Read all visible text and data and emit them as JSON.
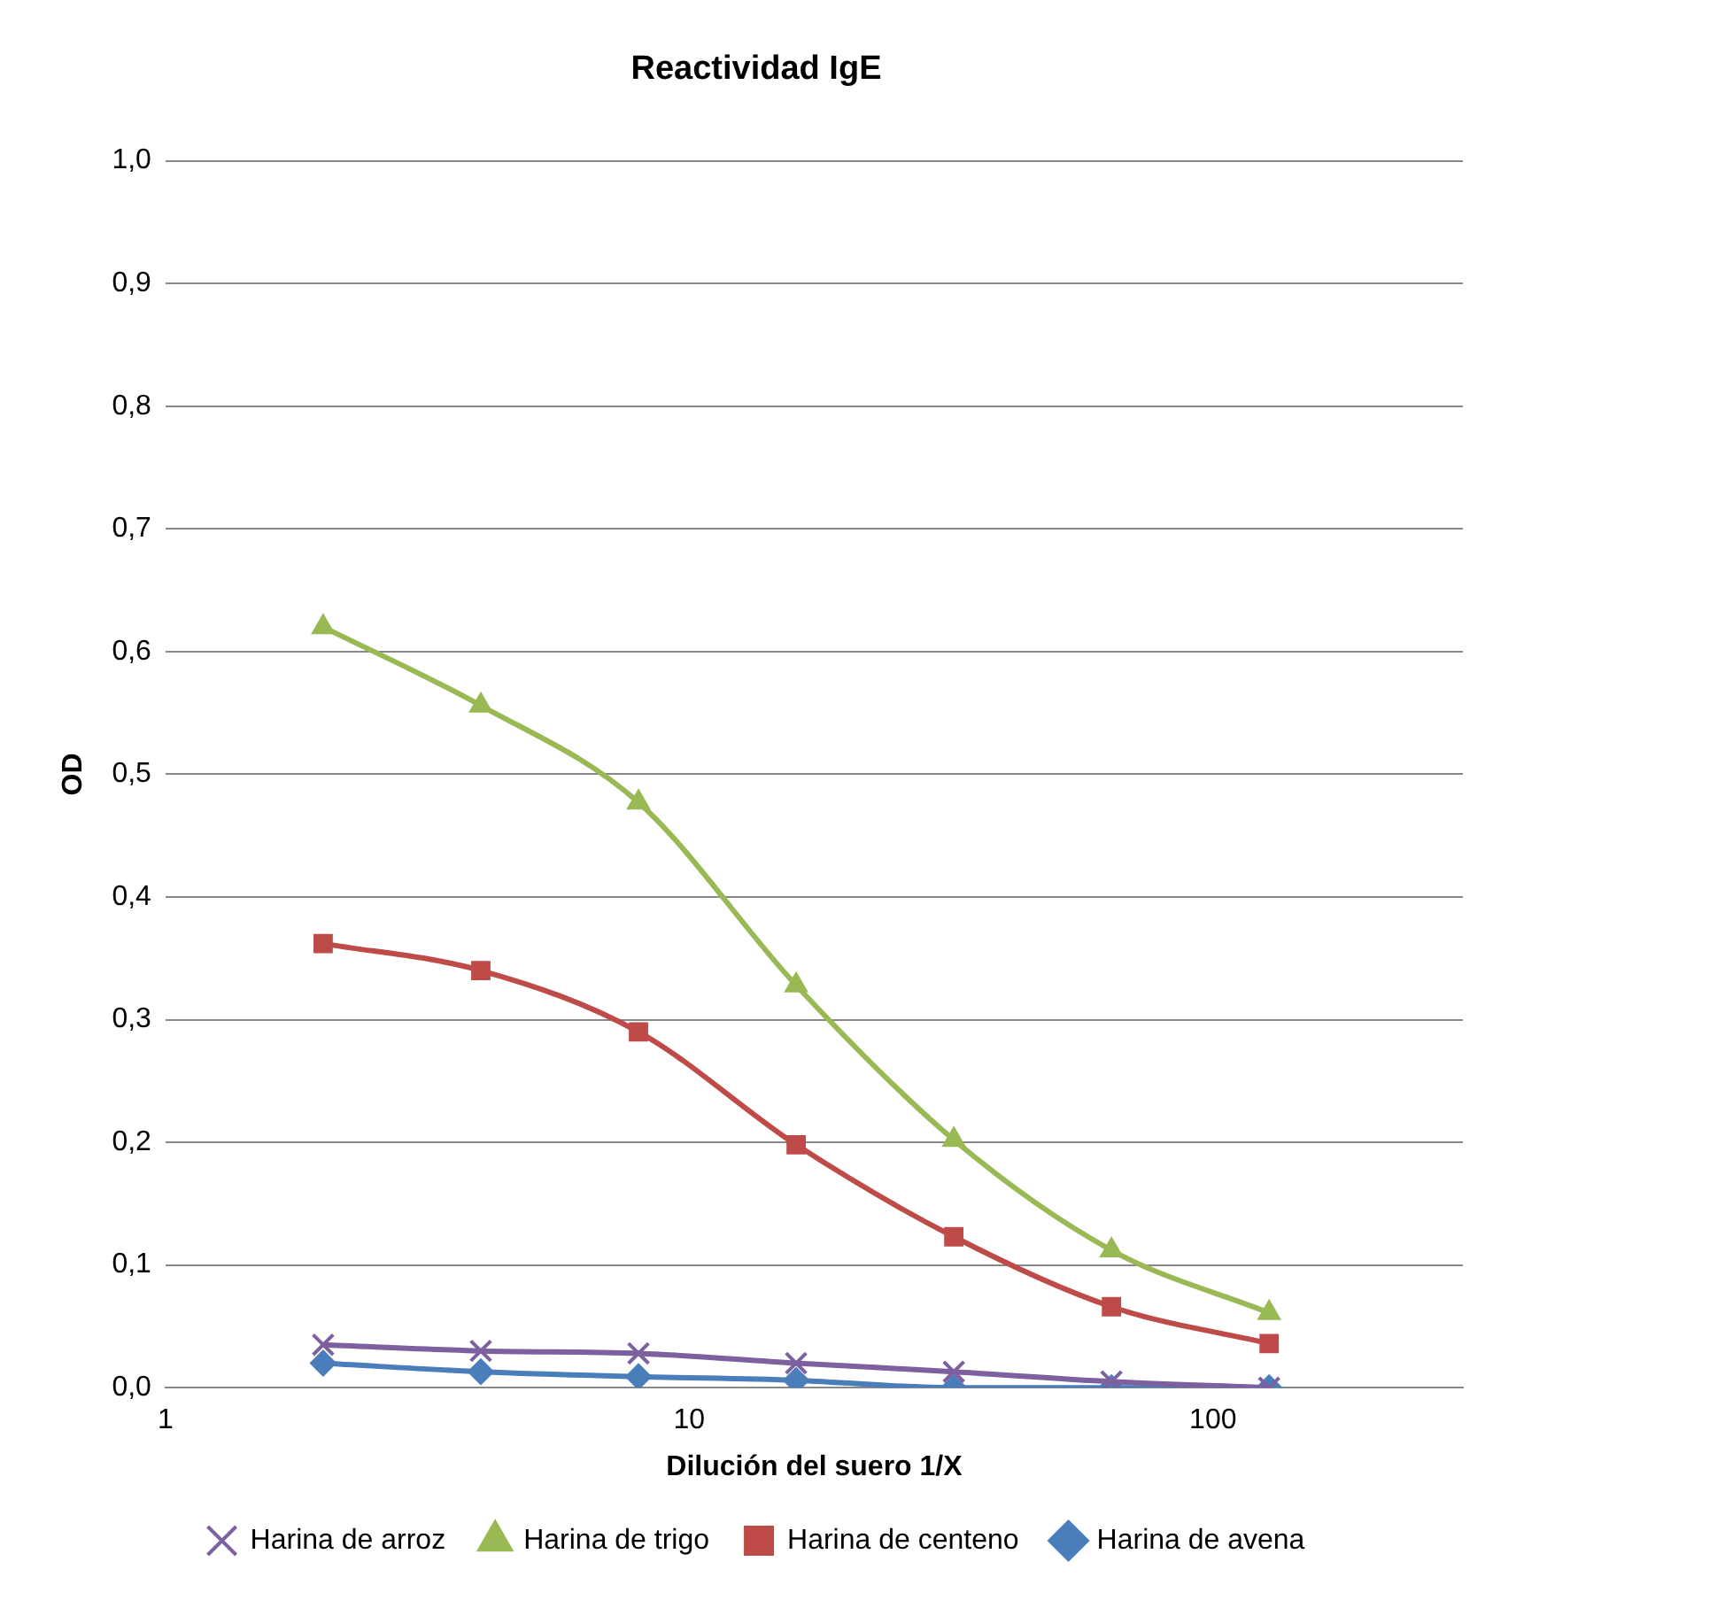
{
  "chart_data": {
    "type": "line",
    "title": "Reactividad IgE",
    "xlabel": "Dilución del suero 1/X",
    "ylabel": "OD",
    "x": [
      2,
      4,
      8,
      16,
      32,
      64,
      128
    ],
    "series": [
      {
        "name": "Harina de avena",
        "color": "#4a7ebb",
        "marker": "diamond",
        "values": [
          0.02,
          0.013,
          0.009,
          0.006,
          0.0,
          0.0,
          0.0
        ]
      },
      {
        "name": "Harina de centeno",
        "color": "#be4b48",
        "marker": "square",
        "values": [
          0.362,
          0.34,
          0.29,
          0.198,
          0.123,
          0.066,
          0.036
        ]
      },
      {
        "name": "Harina de trigo",
        "color": "#98b954",
        "marker": "triangle",
        "values": [
          0.62,
          0.556,
          0.477,
          0.328,
          0.202,
          0.112,
          0.061
        ]
      },
      {
        "name": "Harina de arroz",
        "color": "#7d60a0",
        "marker": "cross",
        "values": [
          0.035,
          0.03,
          0.028,
          0.02,
          0.013,
          0.005,
          0.0
        ]
      }
    ],
    "log": "x",
    "xlim": [
      1,
      300
    ],
    "xticks": [
      1,
      10,
      100
    ],
    "ylim": [
      0,
      1
    ],
    "yticks": [
      {
        "value": 0,
        "label": "0,0"
      },
      {
        "value": 0.1,
        "label": "0,1"
      },
      {
        "value": 0.2,
        "label": "0,2"
      },
      {
        "value": 0.3,
        "label": "0,3"
      },
      {
        "value": 0.4,
        "label": "0,4"
      },
      {
        "value": 0.5,
        "label": "0,5"
      },
      {
        "value": 0.6,
        "label": "0,6"
      },
      {
        "value": 0.7,
        "label": "0,7"
      },
      {
        "value": 0.8,
        "label": "0,8"
      },
      {
        "value": 0.9,
        "label": "0,9"
      },
      {
        "value": 1,
        "label": "1,0"
      }
    ],
    "grid": "y",
    "legend": "bottom"
  }
}
